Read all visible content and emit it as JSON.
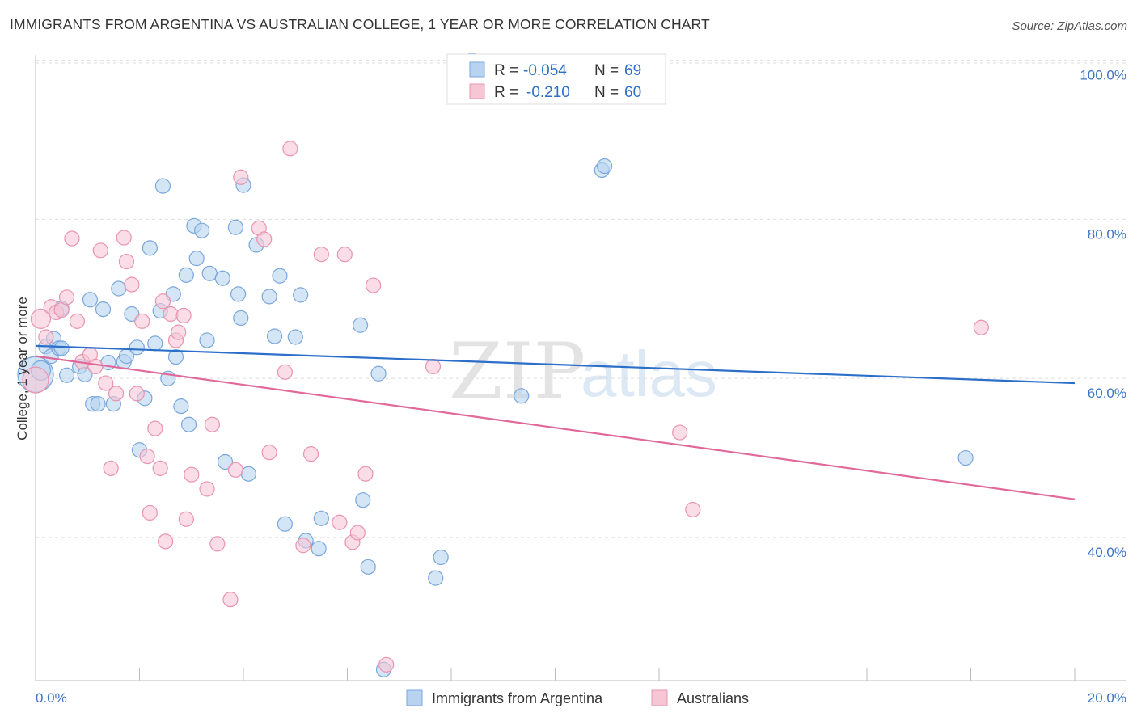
{
  "title": "IMMIGRANTS FROM ARGENTINA VS AUSTRALIAN COLLEGE, 1 YEAR OR MORE CORRELATION CHART",
  "source": "Source: ZipAtlas.com",
  "watermark": {
    "zip": "ZIP",
    "atlas": "atlas"
  },
  "colors": {
    "blue_fill": "#b8d3f0",
    "blue_stroke": "#7aa7dc",
    "blue_line": "#2b6fca",
    "pink_fill": "#f7c6d5",
    "pink_stroke": "#e994b0",
    "pink_line": "#e0689a",
    "axis_text": "#3d74c6",
    "grid": "#dddddd"
  },
  "legend": {
    "r_label": "R =",
    "n_label": "N =",
    "blue": {
      "r": "-0.054",
      "n": "69"
    },
    "pink": {
      "r": "-0.210",
      "n": "60"
    }
  },
  "bottom_legend": {
    "blue": "Immigrants from Argentina",
    "pink": "Australians"
  },
  "chart_data": {
    "type": "scatter",
    "title": "IMMIGRANTS FROM ARGENTINA VS AUSTRALIAN COLLEGE, 1 YEAR OR MORE CORRELATION CHART",
    "xlabel": "",
    "ylabel": "College, 1 year or more",
    "xlim": [
      0,
      20
    ],
    "ylim": [
      22,
      102
    ],
    "x_tick_labels": [
      "0.0%",
      "20.0%"
    ],
    "y_ticks": [
      40,
      60,
      80,
      100
    ],
    "y_tick_labels": [
      "40.0%",
      "60.0%",
      "80.0%",
      "100.0%"
    ],
    "series": [
      {
        "name": "Immigrants from Argentina",
        "color": "blue",
        "trend": {
          "x": [
            0,
            20
          ],
          "y": [
            64.1,
            59.4
          ]
        },
        "points": [
          [
            0.0,
            60.5,
            22
          ],
          [
            0.1,
            61.0,
            12
          ],
          [
            0.2,
            64.0,
            9
          ],
          [
            0.3,
            62.8,
            9
          ],
          [
            0.35,
            65.0,
            9
          ],
          [
            0.45,
            63.8,
            9
          ],
          [
            0.5,
            68.8,
            9
          ],
          [
            0.6,
            60.4,
            9
          ],
          [
            0.85,
            61.5,
            9
          ],
          [
            0.95,
            60.5,
            9
          ],
          [
            1.05,
            69.9,
            9
          ],
          [
            1.1,
            56.8,
            9
          ],
          [
            1.2,
            56.8,
            9
          ],
          [
            1.3,
            68.7,
            9
          ],
          [
            1.4,
            62.0,
            9
          ],
          [
            1.5,
            56.8,
            9
          ],
          [
            1.6,
            71.3,
            9
          ],
          [
            1.7,
            62.1,
            9
          ],
          [
            1.75,
            62.8,
            9
          ],
          [
            1.85,
            68.1,
            9
          ],
          [
            1.95,
            63.9,
            9
          ],
          [
            2.0,
            51.0,
            9
          ],
          [
            2.1,
            57.5,
            9
          ],
          [
            2.2,
            76.4,
            9
          ],
          [
            2.3,
            64.4,
            9
          ],
          [
            2.4,
            68.5,
            9
          ],
          [
            2.45,
            84.2,
            9
          ],
          [
            2.55,
            60.0,
            9
          ],
          [
            2.65,
            70.6,
            9
          ],
          [
            2.7,
            62.7,
            9
          ],
          [
            2.8,
            56.5,
            9
          ],
          [
            2.9,
            73.0,
            9
          ],
          [
            2.95,
            54.2,
            9
          ],
          [
            3.05,
            79.2,
            9
          ],
          [
            3.1,
            75.1,
            9
          ],
          [
            3.2,
            78.6,
            9
          ],
          [
            3.3,
            64.8,
            9
          ],
          [
            3.35,
            73.2,
            9
          ],
          [
            3.6,
            72.6,
            9
          ],
          [
            3.85,
            79.0,
            9
          ],
          [
            3.9,
            70.6,
            9
          ],
          [
            3.95,
            67.6,
            9
          ],
          [
            4.0,
            84.3,
            9
          ],
          [
            4.1,
            48.0,
            9
          ],
          [
            4.25,
            76.8,
            9
          ],
          [
            4.5,
            70.3,
            9
          ],
          [
            4.6,
            65.3,
            9
          ],
          [
            4.7,
            72.9,
            9
          ],
          [
            4.8,
            41.7,
            9
          ],
          [
            5.0,
            65.2,
            9
          ],
          [
            5.1,
            70.5,
            9
          ],
          [
            5.2,
            39.6,
            9
          ],
          [
            5.45,
            38.6,
            9
          ],
          [
            5.5,
            42.4,
            9
          ],
          [
            6.25,
            66.7,
            9
          ],
          [
            6.3,
            44.7,
            9
          ],
          [
            6.4,
            36.3,
            9
          ],
          [
            6.6,
            60.6,
            9
          ],
          [
            6.7,
            23.4,
            9
          ],
          [
            7.7,
            34.9,
            9
          ],
          [
            7.8,
            37.5,
            9
          ],
          [
            8.1,
            97.0,
            9
          ],
          [
            8.4,
            100.0,
            9
          ],
          [
            9.35,
            57.8,
            9
          ],
          [
            10.9,
            86.2,
            9
          ],
          [
            10.95,
            86.7,
            9
          ],
          [
            17.9,
            50.0,
            9
          ],
          [
            3.65,
            49.5,
            9
          ],
          [
            0.5,
            63.8,
            9
          ]
        ]
      },
      {
        "name": "Australians",
        "color": "pink",
        "trend": {
          "x": [
            0,
            20
          ],
          "y": [
            62.8,
            44.8
          ]
        },
        "points": [
          [
            0.0,
            59.8,
            16
          ],
          [
            0.1,
            67.5,
            12
          ],
          [
            0.2,
            65.2,
            9
          ],
          [
            0.3,
            69.0,
            9
          ],
          [
            0.4,
            68.3,
            9
          ],
          [
            0.5,
            68.6,
            9
          ],
          [
            0.6,
            70.2,
            9
          ],
          [
            0.7,
            77.6,
            9
          ],
          [
            0.8,
            67.2,
            9
          ],
          [
            0.9,
            62.1,
            9
          ],
          [
            1.05,
            63.0,
            9
          ],
          [
            1.15,
            61.5,
            9
          ],
          [
            1.25,
            76.1,
            9
          ],
          [
            1.35,
            59.4,
            9
          ],
          [
            1.45,
            48.7,
            9
          ],
          [
            1.55,
            58.1,
            9
          ],
          [
            1.7,
            77.7,
            9
          ],
          [
            1.75,
            74.7,
            9
          ],
          [
            1.85,
            71.8,
            9
          ],
          [
            1.95,
            58.1,
            9
          ],
          [
            2.05,
            67.2,
            9
          ],
          [
            2.15,
            50.2,
            9
          ],
          [
            2.2,
            43.1,
            9
          ],
          [
            2.3,
            53.7,
            9
          ],
          [
            2.4,
            48.7,
            9
          ],
          [
            2.45,
            69.7,
            9
          ],
          [
            2.5,
            39.5,
            9
          ],
          [
            2.6,
            68.1,
            9
          ],
          [
            2.7,
            64.8,
            9
          ],
          [
            2.75,
            65.8,
            9
          ],
          [
            2.85,
            67.9,
            9
          ],
          [
            2.9,
            42.3,
            9
          ],
          [
            3.0,
            47.9,
            9
          ],
          [
            3.3,
            46.1,
            9
          ],
          [
            3.4,
            54.2,
            9
          ],
          [
            3.5,
            39.2,
            9
          ],
          [
            3.75,
            32.2,
            9
          ],
          [
            3.85,
            48.5,
            9
          ],
          [
            3.95,
            85.3,
            9
          ],
          [
            4.3,
            78.9,
            9
          ],
          [
            4.4,
            77.5,
            9
          ],
          [
            4.5,
            50.7,
            9
          ],
          [
            4.8,
            60.8,
            9
          ],
          [
            4.9,
            88.9,
            9
          ],
          [
            5.15,
            39.0,
            9
          ],
          [
            5.3,
            50.5,
            9
          ],
          [
            5.5,
            75.6,
            9
          ],
          [
            5.85,
            41.9,
            9
          ],
          [
            5.95,
            75.6,
            9
          ],
          [
            6.1,
            39.4,
            9
          ],
          [
            6.2,
            40.6,
            9
          ],
          [
            6.35,
            48.0,
            9
          ],
          [
            6.5,
            71.7,
            9
          ],
          [
            6.75,
            24.0,
            9
          ],
          [
            7.65,
            61.5,
            9
          ],
          [
            12.4,
            53.2,
            9
          ],
          [
            12.65,
            43.5,
            9
          ],
          [
            18.2,
            66.4,
            9
          ],
          [
            3.7,
            44.0,
            0
          ],
          [
            1.0,
            60.0,
            0
          ]
        ]
      }
    ]
  }
}
